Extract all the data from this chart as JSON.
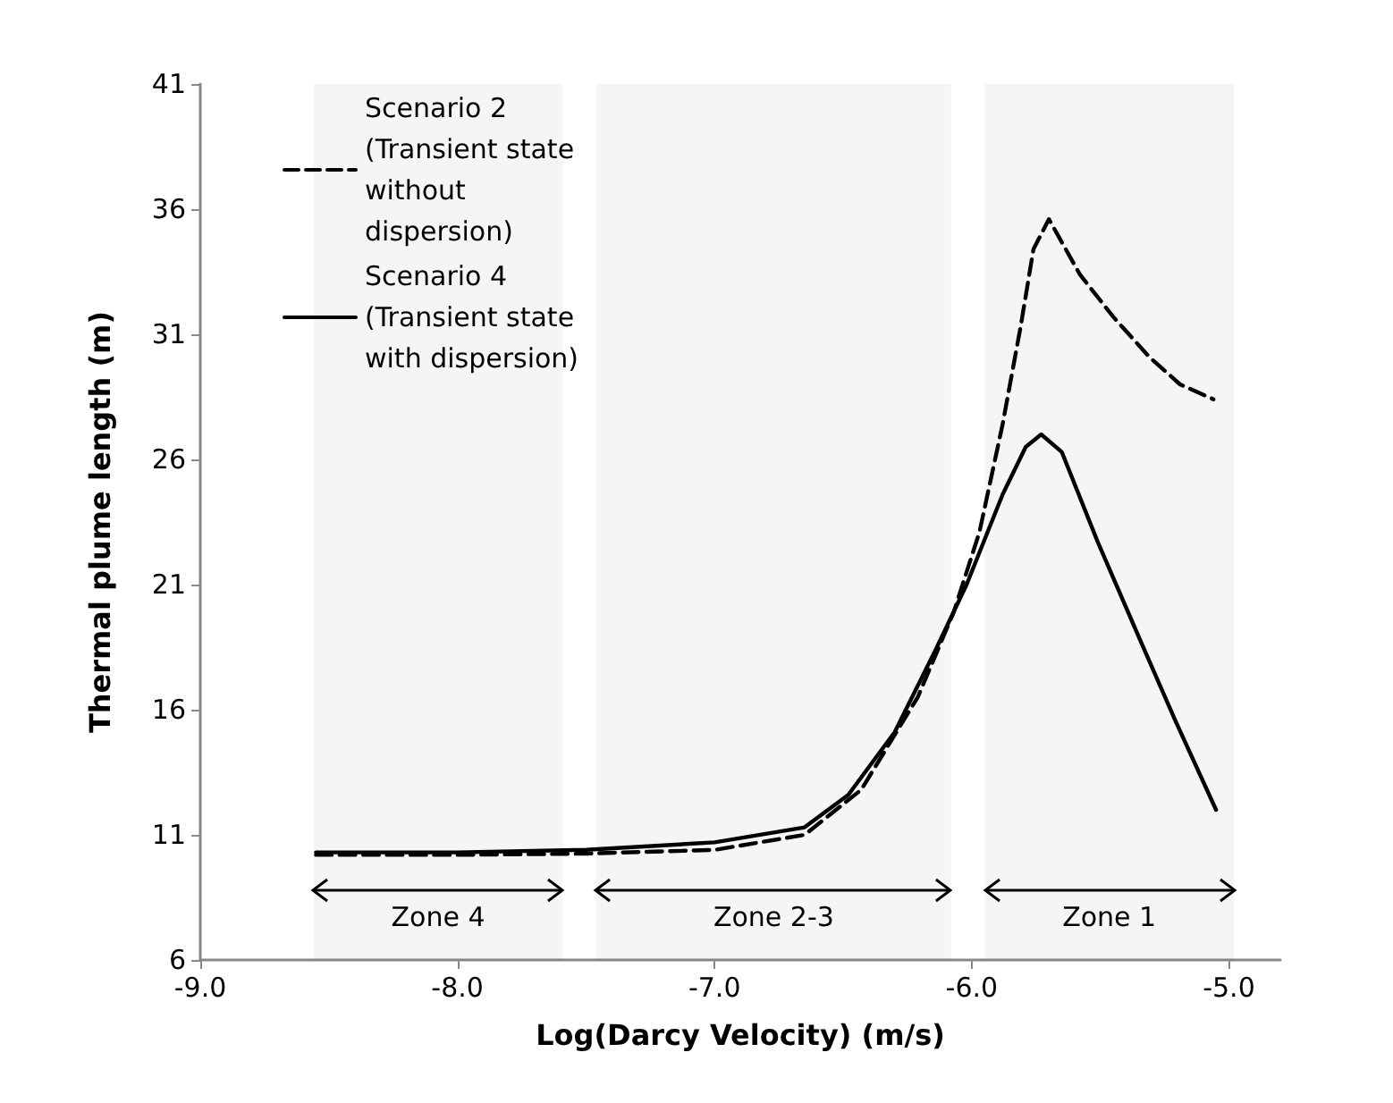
{
  "chart_data": {
    "type": "line",
    "xlabel": "Log(Darcy Velocity) (m/s)",
    "ylabel": "Thermal plume length (m)",
    "series": [
      {
        "name": "Scenario 2 (Transient state without dispersion)",
        "color": "#000000",
        "line_style": "dashed",
        "x": [
          -8.55,
          -8.0,
          -7.5,
          -7.0,
          -6.65,
          -6.43,
          -6.21,
          -6.07,
          -5.97,
          -5.88,
          -5.81,
          -5.76,
          -5.7,
          -5.58,
          -5.45,
          -5.31,
          -5.19,
          -5.06
        ],
        "values": [
          10.2,
          10.2,
          10.25,
          10.4,
          11.0,
          12.8,
          16.5,
          19.9,
          23.1,
          27.4,
          31.3,
          34.4,
          35.6,
          33.4,
          31.7,
          30.1,
          29.0,
          28.4
        ]
      },
      {
        "name": "Scenario 4 (Transient state with dispersion)",
        "color": "#000000",
        "line_style": "solid",
        "x": [
          -8.55,
          -8.0,
          -7.5,
          -7.0,
          -6.65,
          -6.48,
          -6.3,
          -6.14,
          -6.02,
          -5.88,
          -5.79,
          -5.73,
          -5.65,
          -5.51,
          -5.35,
          -5.21,
          -5.05
        ],
        "values": [
          10.3,
          10.3,
          10.4,
          10.7,
          11.3,
          12.6,
          15.1,
          18.4,
          21.0,
          24.6,
          26.5,
          27.0,
          26.3,
          22.7,
          18.9,
          15.6,
          12.0
        ]
      }
    ],
    "xlim": [
      -9,
      -4.8
    ],
    "xticks": [
      {
        "value": -9,
        "label": "-9.0"
      },
      {
        "value": -8,
        "label": "-8.0"
      },
      {
        "value": -7,
        "label": "-7.0"
      },
      {
        "value": -6,
        "label": "-6.0"
      },
      {
        "value": -5,
        "label": "-5.0"
      }
    ],
    "ylim": [
      6,
      41
    ],
    "yticks": [
      6,
      11,
      16,
      21,
      26,
      31,
      36,
      41
    ],
    "bands": [
      {
        "axis": "x",
        "from": -8.56,
        "to": -7.59,
        "label": "Zone 4"
      },
      {
        "axis": "x",
        "from": -7.46,
        "to": -6.08,
        "label": "Zone 2-3"
      },
      {
        "axis": "x",
        "from": -5.95,
        "to": -4.98,
        "label": "Zone 1"
      }
    ],
    "grid": false,
    "legend": "top left",
    "marker": "none"
  }
}
